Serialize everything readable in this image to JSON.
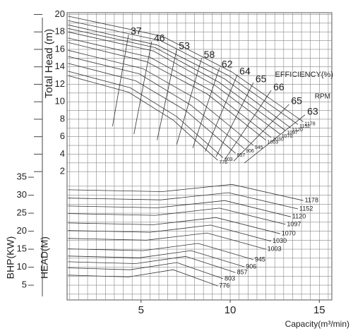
{
  "chart_data": {
    "type": "line",
    "x_label": "Capacity(m³/min)",
    "y_label": "Total Head (m)",
    "y2_label": "BHP(KW)",
    "y3_label": "HEAD(M)",
    "efficiency_label": "EFFICIENCY(%)",
    "rpm_label": "RPM",
    "xlim": [
      0.85,
      15.7
    ],
    "xticks": [
      5,
      10,
      15
    ],
    "ylim": [
      -12.7,
      20.2
    ],
    "yticks": [
      2,
      4,
      6,
      8,
      10,
      12,
      14,
      16,
      18,
      20
    ],
    "y2lim": [
      0.9,
      80.7
    ],
    "y2ticks": [
      5,
      10,
      15,
      20,
      25,
      30,
      35
    ],
    "grid": true,
    "series": [
      {
        "name": "776",
        "x": [
          0.9,
          4.3,
          6.8,
          9.3
        ],
        "head": [
          13.0,
          11.1,
          7.9,
          3.3
        ],
        "bhp": [
          7.8,
          7.3,
          9.3,
          4.8
        ]
      },
      {
        "name": "803",
        "x": [
          0.9,
          4.4,
          7.0,
          9.6
        ],
        "head": [
          13.5,
          11.6,
          8.3,
          3.6
        ],
        "bhp": [
          9.8,
          9.3,
          11.3,
          6.8
        ]
      },
      {
        "name": "857",
        "x": [
          0.9,
          4.7,
          7.5,
          10.3
        ],
        "head": [
          14.4,
          12.4,
          9.0,
          4.1
        ],
        "bhp": [
          11.5,
          11.0,
          13.0,
          8.5
        ]
      },
      {
        "name": "906",
        "x": [
          0.9,
          4.9,
          7.8,
          10.8
        ],
        "head": [
          15.2,
          13.2,
          9.6,
          4.6
        ],
        "bhp": [
          13.1,
          12.6,
          14.6,
          10.1
        ]
      },
      {
        "name": "945",
        "x": [
          0.9,
          5.1,
          8.2,
          11.3
        ],
        "head": [
          15.9,
          13.8,
          10.2,
          5.0
        ],
        "bhp": [
          15.1,
          14.6,
          16.6,
          12.1
        ]
      },
      {
        "name": "1003",
        "x": [
          0.9,
          5.3,
          8.7,
          12.0
        ],
        "head": [
          16.8,
          14.6,
          10.9,
          5.6
        ],
        "bhp": [
          18.0,
          17.5,
          19.5,
          15.0
        ]
      },
      {
        "name": "1030",
        "x": [
          0.9,
          5.5,
          8.9,
          12.3
        ],
        "head": [
          17.3,
          15.1,
          11.3,
          5.9
        ],
        "bhp": [
          20.2,
          19.7,
          21.7,
          17.2
        ]
      },
      {
        "name": "1070",
        "x": [
          0.9,
          5.7,
          9.2,
          12.8
        ],
        "head": [
          18.0,
          15.8,
          11.8,
          6.3
        ],
        "bhp": [
          22.3,
          21.8,
          23.8,
          19.3
        ]
      },
      {
        "name": "1097",
        "x": [
          0.9,
          5.8,
          9.4,
          13.1
        ],
        "head": [
          18.4,
          16.2,
          12.2,
          6.7
        ],
        "bhp": [
          24.9,
          24.4,
          26.4,
          21.9
        ]
      },
      {
        "name": "1120",
        "x": [
          0.9,
          5.9,
          9.7,
          13.4
        ],
        "head": [
          18.8,
          16.5,
          12.6,
          7.0
        ],
        "bhp": [
          27.0,
          26.5,
          28.5,
          24.0
        ]
      },
      {
        "name": "1152",
        "x": [
          0.9,
          6.1,
          9.9,
          13.8
        ],
        "head": [
          19.3,
          17.0,
          13.0,
          7.4
        ],
        "bhp": [
          29.2,
          28.7,
          30.7,
          26.2
        ]
      },
      {
        "name": "1178",
        "x": [
          0.9,
          6.2,
          10.1,
          14.1
        ],
        "head": [
          19.8,
          17.5,
          13.4,
          7.7
        ],
        "bhp": [
          31.5,
          31.0,
          33.0,
          28.5
        ]
      }
    ],
    "efficiency_lines": [
      {
        "label": "37",
        "x": [
          3.4,
          4.3
        ],
        "head": [
          7.2,
          17.7
        ]
      },
      {
        "label": "46",
        "x": [
          4.6,
          5.6
        ],
        "head": [
          6.3,
          16.9
        ]
      },
      {
        "label": "53",
        "x": [
          5.9,
          7.0
        ],
        "head": [
          5.6,
          16.0
        ]
      },
      {
        "label": "58",
        "x": [
          7.0,
          8.4
        ],
        "head": [
          5.1,
          15.0
        ]
      },
      {
        "label": "62",
        "x": [
          7.9,
          9.4
        ],
        "head": [
          4.7,
          13.9
        ]
      },
      {
        "label": "64",
        "x": [
          8.6,
          10.4
        ],
        "head": [
          4.3,
          13.1
        ]
      },
      {
        "label": "65",
        "x": [
          9.2,
          11.3
        ],
        "head": [
          3.7,
          12.2
        ]
      },
      {
        "label": "66",
        "x": [
          9.7,
          12.3
        ],
        "head": [
          3.4,
          11.3
        ]
      },
      {
        "label": "65",
        "x": [
          10.2,
          13.3
        ],
        "head": [
          3.2,
          9.7
        ]
      },
      {
        "label": "63",
        "x": [
          10.8,
          14.2
        ],
        "head": [
          3.0,
          8.5
        ]
      }
    ]
  }
}
